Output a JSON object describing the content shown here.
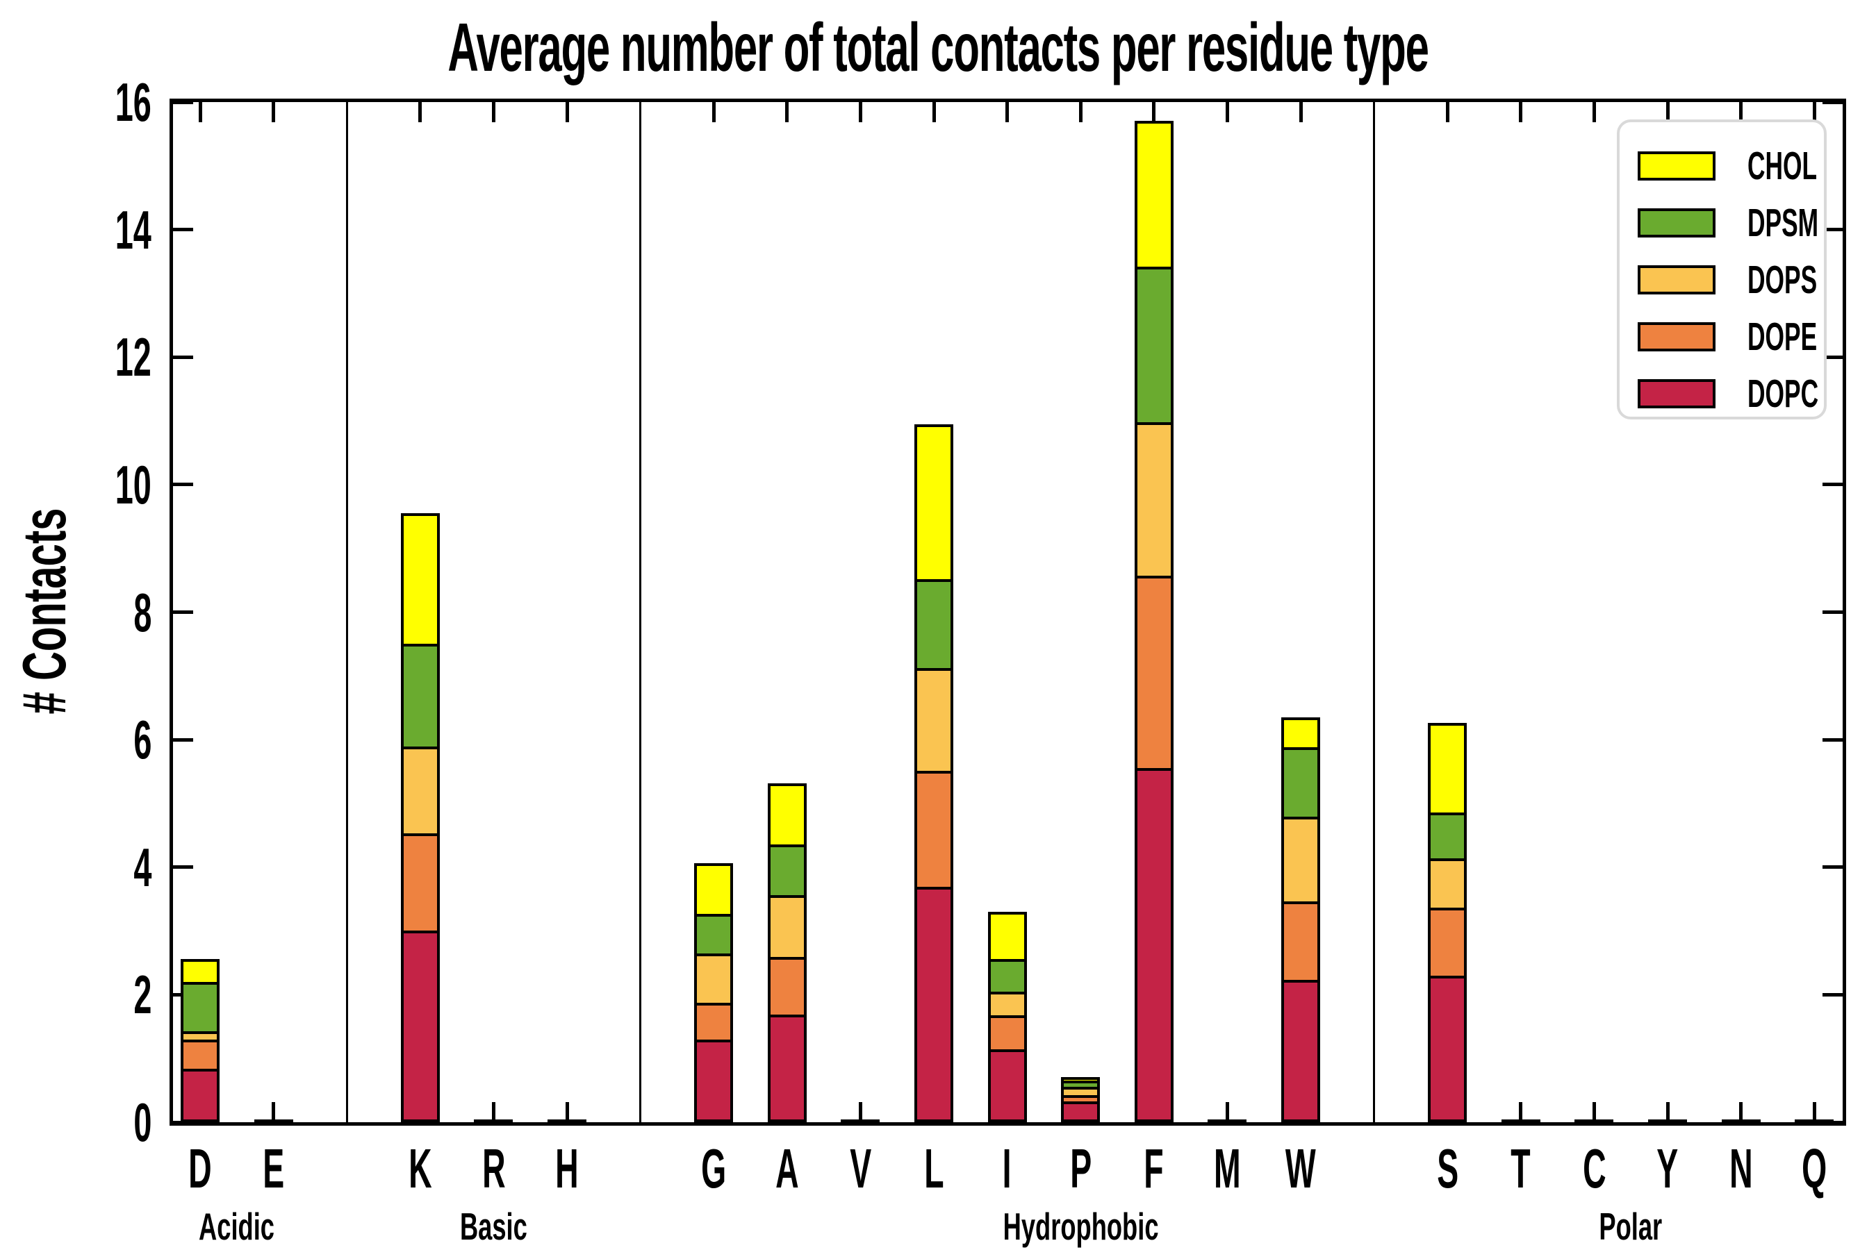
{
  "title": "Average number of total contacts per residue type",
  "y_axis": {
    "label": "# Contacts",
    "ticks": [
      0,
      2,
      4,
      6,
      8,
      10,
      12,
      14,
      16
    ]
  },
  "legend": {
    "items": [
      {
        "label": "CHOL",
        "color": "#ffff00"
      },
      {
        "label": "DPSM",
        "color": "#6aab2f"
      },
      {
        "label": "DOPS",
        "color": "#fac451"
      },
      {
        "label": "DOPE",
        "color": "#ee8240"
      },
      {
        "label": "DOPC",
        "color": "#c42346"
      }
    ]
  },
  "chart_data": {
    "type": "bar",
    "subtype": "stacked",
    "title": "Average number of total contacts per residue type",
    "xlabel": "",
    "ylabel": "# Contacts",
    "ylim": [
      0,
      16
    ],
    "yticks": [
      0,
      2,
      4,
      6,
      8,
      10,
      12,
      14,
      16
    ],
    "grid": false,
    "legend_position": "upper right",
    "groups": [
      {
        "label": "Acidic",
        "residues": [
          "D",
          "E"
        ]
      },
      {
        "label": "Basic",
        "residues": [
          "K",
          "R",
          "H"
        ]
      },
      {
        "label": "Hydrophobic",
        "residues": [
          "G",
          "A",
          "V",
          "L",
          "I",
          "P",
          "F",
          "M",
          "W"
        ]
      },
      {
        "label": "Polar",
        "residues": [
          "S",
          "T",
          "C",
          "Y",
          "N",
          "Q"
        ]
      }
    ],
    "categories": [
      "D",
      "E",
      "K",
      "R",
      "H",
      "G",
      "A",
      "V",
      "L",
      "I",
      "P",
      "F",
      "M",
      "W",
      "S",
      "T",
      "C",
      "Y",
      "N",
      "Q"
    ],
    "series": [
      {
        "name": "DOPC",
        "color": "#c42346",
        "values": [
          0.78,
          0.03,
          2.95,
          0.03,
          0.03,
          1.24,
          1.63,
          0.03,
          3.63,
          1.08,
          0.27,
          5.5,
          0.03,
          2.18,
          2.24,
          0.03,
          0.03,
          0.03,
          0.03,
          0.03
        ]
      },
      {
        "name": "DOPE",
        "color": "#ee8240",
        "values": [
          0.47,
          0,
          1.53,
          0,
          0,
          0.59,
          0.92,
          0,
          1.84,
          0.55,
          0.12,
          3.03,
          0,
          1.24,
          1.08,
          0,
          0,
          0,
          0,
          0
        ]
      },
      {
        "name": "DOPS",
        "color": "#fac451",
        "values": [
          0.14,
          0,
          1.38,
          0,
          0,
          0.79,
          0.98,
          0,
          1.62,
          0.38,
          0.14,
          2.42,
          0,
          1.35,
          0.79,
          0,
          0,
          0,
          0,
          0
        ]
      },
      {
        "name": "DPSM",
        "color": "#6aab2f",
        "values": [
          0.8,
          0,
          1.63,
          0,
          0,
          0.63,
          0.81,
          0,
          1.41,
          0.53,
          0.12,
          2.46,
          0,
          1.11,
          0.73,
          0,
          0,
          0,
          0,
          0
        ]
      },
      {
        "name": "CHOL",
        "color": "#ffff00",
        "values": [
          0.37,
          0,
          2.06,
          0,
          0,
          0.81,
          0.98,
          0,
          2.45,
          0.76,
          0.06,
          2.3,
          0,
          0.47,
          1.42,
          0,
          0,
          0,
          0,
          0
        ]
      }
    ],
    "totals": {
      "D": 2.56,
      "E": 0.03,
      "K": 9.55,
      "R": 0.03,
      "H": 0.03,
      "G": 4.06,
      "A": 5.32,
      "V": 0.03,
      "L": 10.95,
      "I": 3.3,
      "P": 0.71,
      "F": 15.71,
      "M": 0.03,
      "W": 6.35,
      "S": 6.26,
      "T": 0.03,
      "C": 0.03,
      "Y": 0.03,
      "N": 0.03,
      "Q": 0.03
    }
  }
}
